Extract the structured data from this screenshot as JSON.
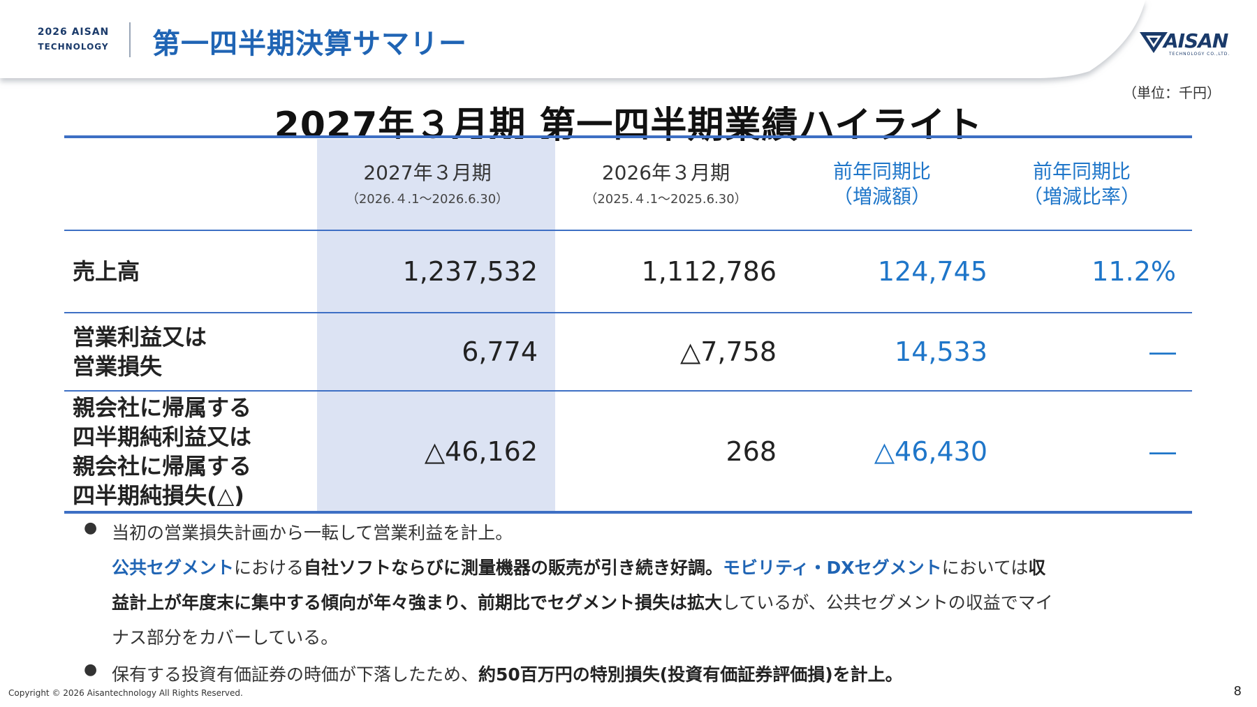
{
  "header": {
    "brand_line1": "2026 AISAN",
    "brand_line2": "TECHNOLOGY",
    "title": "第一四半期決算サマリー",
    "logo_word": "AISAN",
    "logo_sub": "TECHNOLOGY CO.,LTD.",
    "logo_icon": "triangle-chevron-icon"
  },
  "unit_note": "（単位：千円）",
  "heading": "2027年３月期 第一四半期業績ハイライト",
  "table": {
    "columns": [
      {
        "main": "2027年３月期",
        "sub": "（2026.４.1～2026.6.30）"
      },
      {
        "main": "2026年３月期",
        "sub": "（2025.４.1～2025.6.30）"
      },
      {
        "main1": "前年同期比",
        "main2": "（増減額）"
      },
      {
        "main1": "前年同期比",
        "main2": "（増減比率）"
      }
    ],
    "rows": [
      {
        "label": "売上高",
        "values": [
          "1,237,532",
          "1,112,786",
          "124,745",
          "11.2%"
        ]
      },
      {
        "label_lines": [
          "営業利益又は",
          "営業損失"
        ],
        "values": [
          "6,774",
          "△7,758",
          "14,533",
          "―"
        ]
      },
      {
        "label_lines": [
          "親会社に帰属する",
          "四半期純利益又は",
          "親会社に帰属する",
          "四半期純損失(△)"
        ],
        "values": [
          "△46,162",
          "268",
          "△46,430",
          "―"
        ]
      }
    ]
  },
  "notes": {
    "bullet_glyph": "●",
    "n1": "当初の営業損失計画から一転して営業利益を計上。",
    "n2_a": "公共セグメント",
    "n2_b": "における",
    "n2_c": "自社ソフトならびに測量機器の販売が引き続き好調。",
    "n2_d": "モビリティ・DXセグメント",
    "n2_e": "においては",
    "n2_f": "収",
    "n3_a": "益計上が年度末に集中する傾向が年々強まり、前期比でセグメント損失は拡大",
    "n3_b": "しているが、公共セグメントの収益でマイ",
    "n4": "ナス部分をカバーしている。",
    "n5_a": "保有する投資有価証券の時価が下落したため、",
    "n5_b": "約50百万円の特別損失(投資有価証券評価損)を計上。"
  },
  "footer": {
    "copyright": "Copyright © 2026 Aisantechnology All Rights Reserved.",
    "page_number": "8"
  },
  "colors": {
    "accent": "#1f64b4",
    "value_blue": "#1f76c9",
    "highlight": "#dce3f3",
    "rule": "#3d6fc4"
  }
}
